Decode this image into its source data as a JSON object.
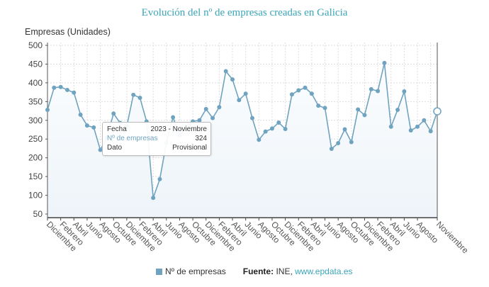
{
  "chart_data": {
    "type": "line",
    "title": "Evolución del nº de empresas creadas en Galicia",
    "ylabel": "Empresas (Unidades)",
    "ylim": [
      40,
      510
    ],
    "yticks": [
      50,
      100,
      150,
      200,
      250,
      300,
      350,
      400,
      450,
      500
    ],
    "grid": true,
    "x_range": [
      "2018 - Diciembre",
      "2023 - Noviembre"
    ],
    "xtick_labels": [
      "Diciembre",
      "Febrero",
      "Abril",
      "Junio",
      "Agosto",
      "Octubre",
      "Diciembre",
      "Febrero",
      "Abril",
      "Junio",
      "Agosto",
      "Octubre",
      "Diciembre",
      "Febrero",
      "Abril",
      "Junio",
      "Agosto",
      "Octubre",
      "Diciembre",
      "Febrero",
      "Abril",
      "Junio",
      "Agosto",
      "Octubre",
      "Diciembre",
      "Febrero",
      "Abril",
      "Junio",
      "Agosto",
      "Noviembre"
    ],
    "series": [
      {
        "name": "Nº de empresas",
        "color": "#6fa3bf",
        "values": [
          328,
          387,
          389,
          381,
          374,
          315,
          286,
          281,
          221,
          255,
          318,
          293,
          284,
          368,
          360,
          297,
          93,
          143,
          240,
          308,
          260,
          280,
          297,
          300,
          330,
          306,
          335,
          431,
          409,
          354,
          371,
          306,
          248,
          270,
          278,
          294,
          277,
          369,
          380,
          387,
          371,
          339,
          333,
          224,
          239,
          276,
          242,
          329,
          314,
          383,
          378,
          453,
          283,
          328,
          377,
          273,
          283,
          300,
          271,
          324
        ]
      }
    ]
  },
  "tooltip": {
    "fecha_label": "Fecha",
    "fecha_value": "2023 - Noviembre",
    "serie_label": "Nº de empresas",
    "serie_value": "324",
    "dato_label": "Dato",
    "dato_value": "Provisional"
  },
  "legend": {
    "label": "Nº de empresas"
  },
  "source": {
    "label": "Fuente:",
    "text": " INE, ",
    "link": "www.epdata.es"
  },
  "colors": {
    "title": "#3ba5b8",
    "line": "#6fa3bf",
    "link": "#3ba5b8"
  }
}
